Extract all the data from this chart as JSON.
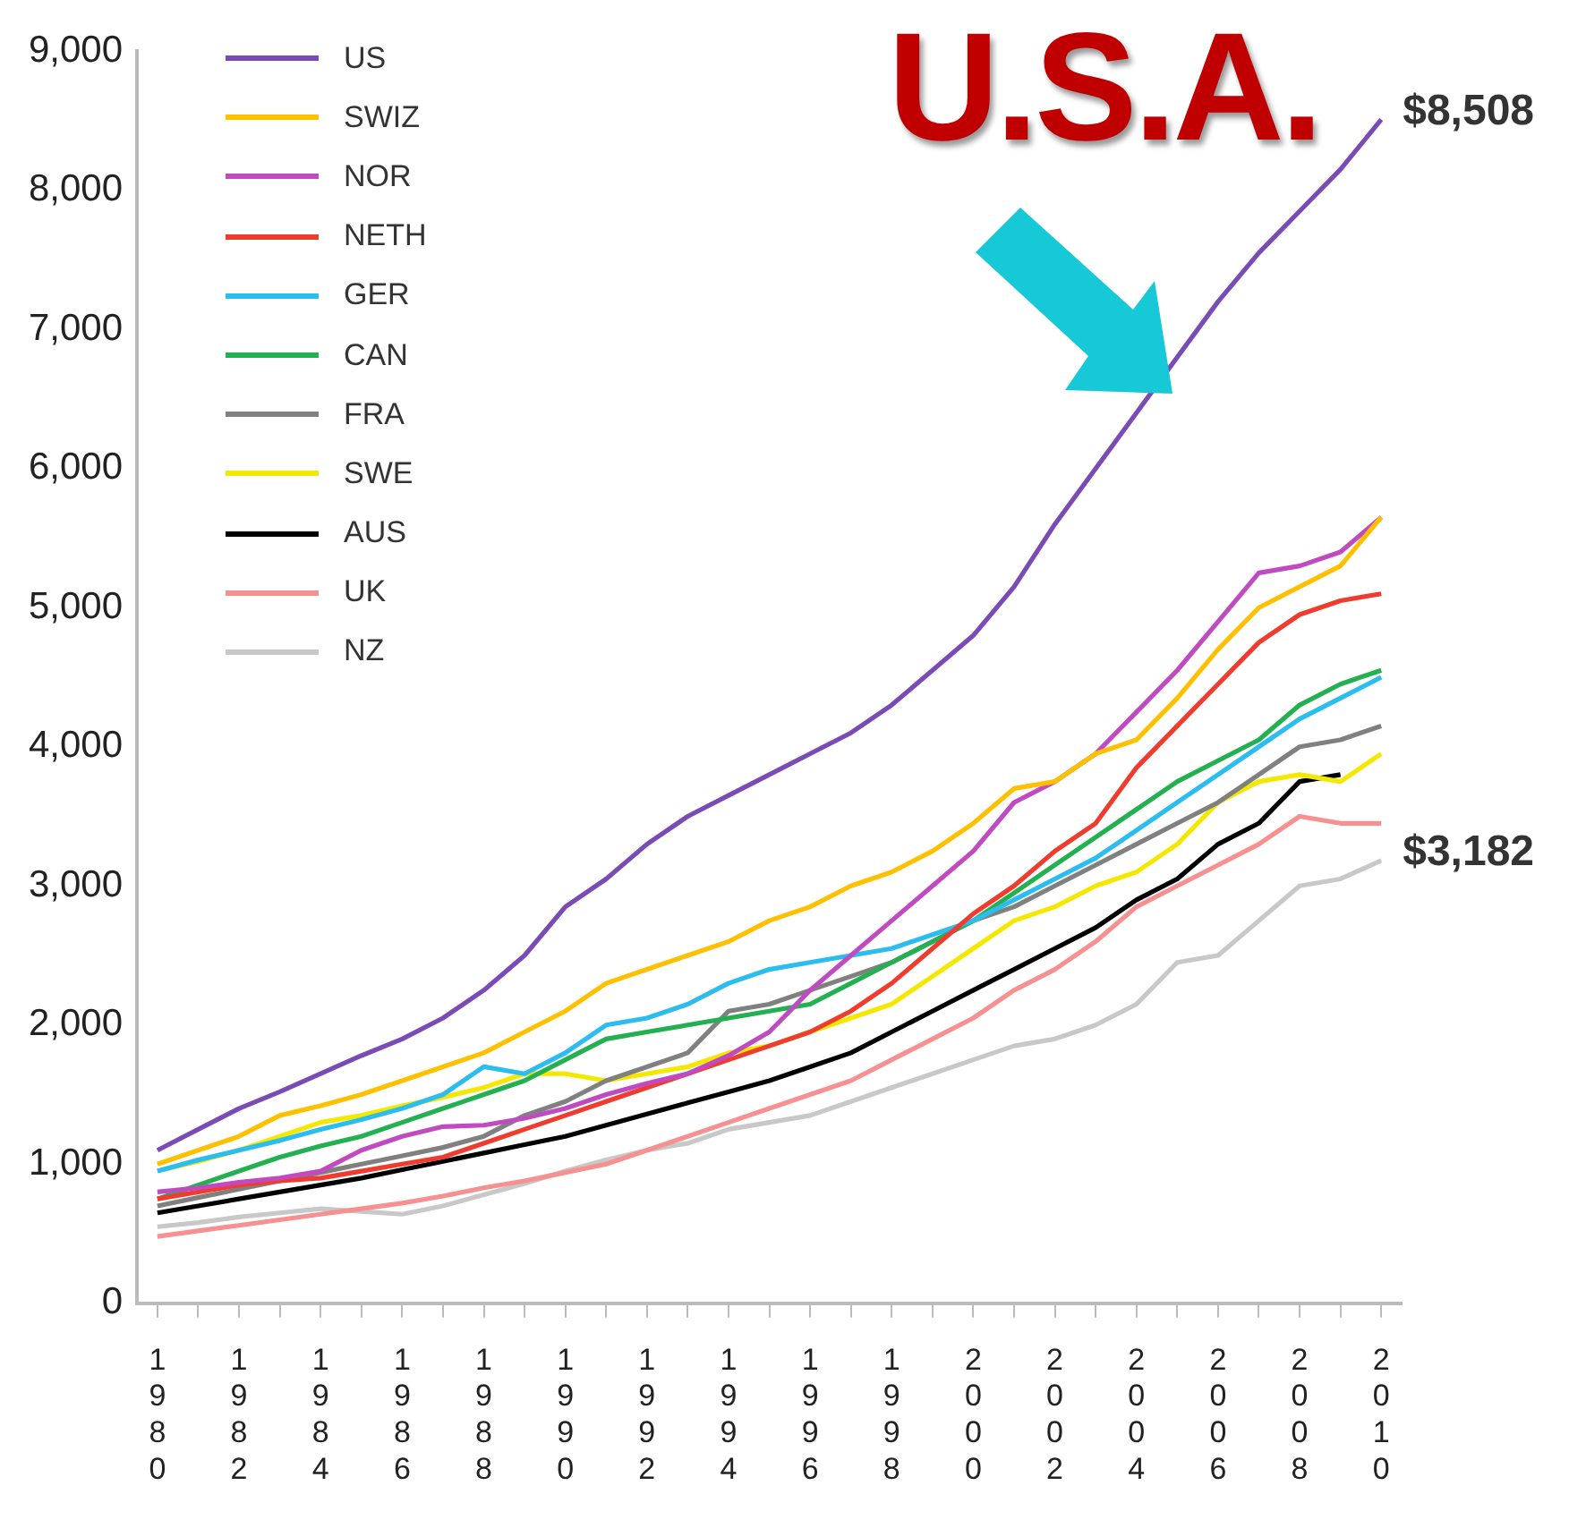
{
  "chart_data": {
    "type": "line",
    "legend": "top left",
    "grid": false,
    "annotations": [
      "U.S.A.",
      {
        "text": "$8,508",
        "x": 2010,
        "y": 8508
      },
      {
        "text": "$3,182",
        "x": 2010,
        "y": 3182
      }
    ],
    "x": [
      1980,
      1981,
      1982,
      1983,
      1984,
      1985,
      1986,
      1987,
      1988,
      1989,
      1990,
      1991,
      1992,
      1993,
      1994,
      1995,
      1996,
      1997,
      1998,
      1999,
      2000,
      2001,
      2002,
      2003,
      2004,
      2005,
      2006,
      2007,
      2008,
      2009,
      2010
    ],
    "xlim": [
      1979.5,
      2010.5
    ],
    "xticks": [
      1980,
      {
        "value": 1981,
        "label": null
      },
      1982,
      {
        "value": 1983,
        "label": null
      },
      1984,
      {
        "value": 1985,
        "label": null
      },
      1986,
      {
        "value": 1987,
        "label": null
      },
      1988,
      {
        "value": 1989,
        "label": null
      },
      1990,
      {
        "value": 1991,
        "label": null
      },
      1992,
      {
        "value": 1993,
        "label": null
      },
      1994,
      {
        "value": 1995,
        "label": null
      },
      1996,
      {
        "value": 1997,
        "label": null
      },
      1998,
      {
        "value": 1999,
        "label": null
      },
      2000,
      {
        "value": 2001,
        "label": null
      },
      2002,
      {
        "value": 2003,
        "label": null
      },
      2004,
      {
        "value": 2005,
        "label": null
      },
      2006,
      {
        "value": 2007,
        "label": null
      },
      2008,
      {
        "value": 2009,
        "label": null
      },
      2010
    ],
    "ylim": [
      0,
      9000
    ],
    "yticks": [
      0,
      {
        "value": 1000,
        "label": "1,000"
      },
      {
        "value": 2000,
        "label": "2,000"
      },
      {
        "value": 3000,
        "label": "3,000"
      },
      {
        "value": 4000,
        "label": "4,000"
      },
      {
        "value": 5000,
        "label": "5,000"
      },
      {
        "value": 6000,
        "label": "6,000"
      },
      {
        "value": 7000,
        "label": "7,000"
      },
      {
        "value": 8000,
        "label": "8,000"
      },
      {
        "value": 9000,
        "label": "9,000"
      }
    ],
    "series": [
      {
        "name": "US",
        "color": "#7b4bb5",
        "values": [
          1100,
          1250,
          1400,
          1520,
          1650,
          1780,
          1900,
          2050,
          2250,
          2500,
          2850,
          3050,
          3300,
          3500,
          3650,
          3800,
          3950,
          4100,
          4300,
          4550,
          4800,
          5150,
          5600,
          6000,
          6400,
          6800,
          7200,
          7550,
          7850,
          8150,
          8508
        ]
      },
      {
        "name": "SWIZ",
        "color": "#ffc000",
        "values": [
          1000,
          1100,
          1200,
          1350,
          1420,
          1500,
          1600,
          1700,
          1800,
          1950,
          2100,
          2300,
          2400,
          2500,
          2600,
          2750,
          2850,
          3000,
          3100,
          3250,
          3450,
          3700,
          3750,
          3950,
          4050,
          4350,
          4700,
          5000,
          5150,
          5300,
          5650
        ]
      },
      {
        "name": "NOR",
        "color": "#c04bc0",
        "values": [
          800,
          830,
          870,
          900,
          950,
          1100,
          1200,
          1270,
          1280,
          1330,
          1400,
          1500,
          1580,
          1650,
          1780,
          1950,
          2250,
          2500,
          2750,
          3000,
          3250,
          3600,
          3750,
          3950,
          4250,
          4550,
          4900,
          5250,
          5300,
          5400,
          5650
        ]
      },
      {
        "name": "NETH",
        "color": "#f03c2e",
        "values": [
          750,
          800,
          850,
          880,
          900,
          950,
          1000,
          1050,
          1150,
          1250,
          1350,
          1450,
          1550,
          1650,
          1750,
          1850,
          1950,
          2100,
          2300,
          2550,
          2800,
          3000,
          3250,
          3450,
          3850,
          4150,
          4450,
          4750,
          4950,
          5050,
          5100
        ]
      },
      {
        "name": "GER",
        "color": "#2bbcf0",
        "values": [
          950,
          1030,
          1100,
          1170,
          1250,
          1320,
          1400,
          1500,
          1700,
          1650,
          1800,
          2000,
          2050,
          2150,
          2300,
          2400,
          2450,
          2500,
          2550,
          2650,
          2750,
          2900,
          3050,
          3200,
          3400,
          3600,
          3800,
          4000,
          4200,
          4350,
          4500
        ]
      },
      {
        "name": "CAN",
        "color": "#22b050",
        "values": [
          750,
          850,
          950,
          1050,
          1130,
          1200,
          1300,
          1400,
          1500,
          1600,
          1750,
          1900,
          1950,
          2000,
          2050,
          2100,
          2150,
          2300,
          2450,
          2600,
          2750,
          2950,
          3150,
          3350,
          3550,
          3750,
          3900,
          4050,
          4300,
          4450,
          4550
        ]
      },
      {
        "name": "FRA",
        "color": "#808080",
        "values": [
          700,
          760,
          820,
          880,
          940,
          1000,
          1060,
          1120,
          1200,
          1350,
          1450,
          1600,
          1700,
          1800,
          2100,
          2150,
          2250,
          2350,
          2450,
          2600,
          2750,
          2850,
          3000,
          3150,
          3300,
          3450,
          3600,
          3800,
          4000,
          4050,
          4150
        ]
      },
      {
        "name": "SWE",
        "color": "#f5e800",
        "values": [
          950,
          1020,
          1100,
          1200,
          1300,
          1350,
          1420,
          1480,
          1550,
          1650,
          1650,
          1600,
          1650,
          1700,
          1800,
          1850,
          1950,
          2050,
          2150,
          2350,
          2550,
          2750,
          2850,
          3000,
          3100,
          3300,
          3600,
          3750,
          3800,
          3750,
          3950
        ]
      },
      {
        "name": "AUS",
        "color": "#000000",
        "values": [
          650,
          700,
          750,
          800,
          850,
          900,
          960,
          1020,
          1080,
          1140,
          1200,
          1280,
          1360,
          1440,
          1520,
          1600,
          1700,
          1800,
          1950,
          2100,
          2250,
          2400,
          2550,
          2700,
          2900,
          3050,
          3300,
          3450,
          3750,
          3800,
          null
        ]
      },
      {
        "name": "UK",
        "color": "#f79090",
        "values": [
          480,
          520,
          560,
          600,
          640,
          680,
          720,
          770,
          830,
          880,
          940,
          1000,
          1100,
          1200,
          1300,
          1400,
          1500,
          1600,
          1750,
          1900,
          2050,
          2250,
          2400,
          2600,
          2850,
          3000,
          3150,
          3300,
          3500,
          3450,
          3450
        ]
      },
      {
        "name": "NZ",
        "color": "#c8c8c8",
        "values": [
          550,
          580,
          620,
          650,
          680,
          660,
          640,
          700,
          780,
          860,
          950,
          1030,
          1100,
          1150,
          1250,
          1300,
          1350,
          1450,
          1550,
          1650,
          1750,
          1850,
          1900,
          2000,
          2150,
          2450,
          2500,
          2750,
          3000,
          3050,
          3182
        ]
      }
    ]
  }
}
